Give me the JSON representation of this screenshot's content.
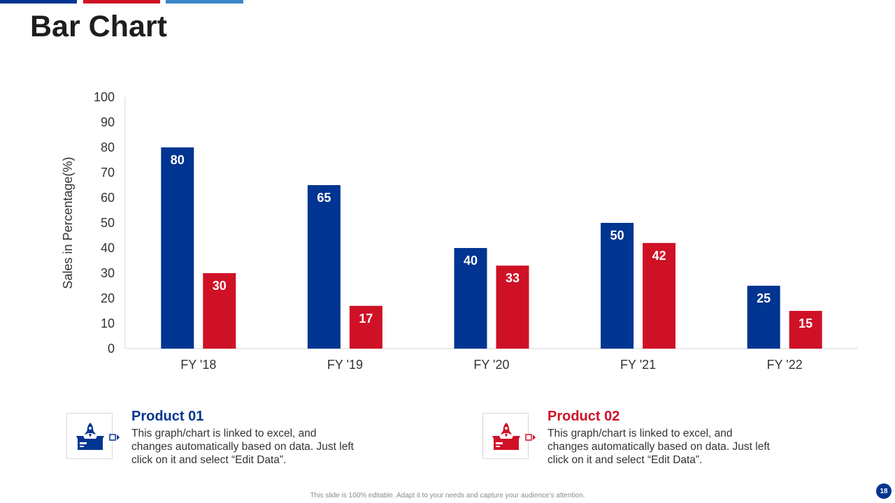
{
  "slide": {
    "title": "Bar Chart",
    "footer": "This slide is 100% editable. Adapt it to your needs and capture your audience’s attention.",
    "page_number": "18"
  },
  "colors": {
    "product1": "#003591",
    "product2": "#cf1126",
    "accent_light": "#3a86c8",
    "axis": "#d4d4d4"
  },
  "chart_data": {
    "type": "bar",
    "title": "",
    "xlabel": "",
    "ylabel": "Sales in Percentage(%)",
    "ylim": [
      0,
      100
    ],
    "yticks": [
      0,
      10,
      20,
      30,
      40,
      50,
      60,
      70,
      80,
      90,
      100
    ],
    "categories": [
      "FY '18",
      "FY '19",
      "FY '20",
      "FY '21",
      "FY '22"
    ],
    "series": [
      {
        "name": "Product 01",
        "values": [
          80,
          65,
          40,
          50,
          25
        ]
      },
      {
        "name": "Product 02",
        "values": [
          30,
          17,
          33,
          42,
          15
        ]
      }
    ]
  },
  "products": [
    {
      "title": "Product 01",
      "description": "This graph/chart is linked to excel, and changes automatically based on data. Just left click on it and select “Edit Data”.",
      "icon": "rocket-box-icon"
    },
    {
      "title": "Product 02",
      "description": "This graph/chart is linked to excel, and changes automatically based on data. Just left click on it and select “Edit Data”.",
      "icon": "rocket-box-icon"
    }
  ]
}
